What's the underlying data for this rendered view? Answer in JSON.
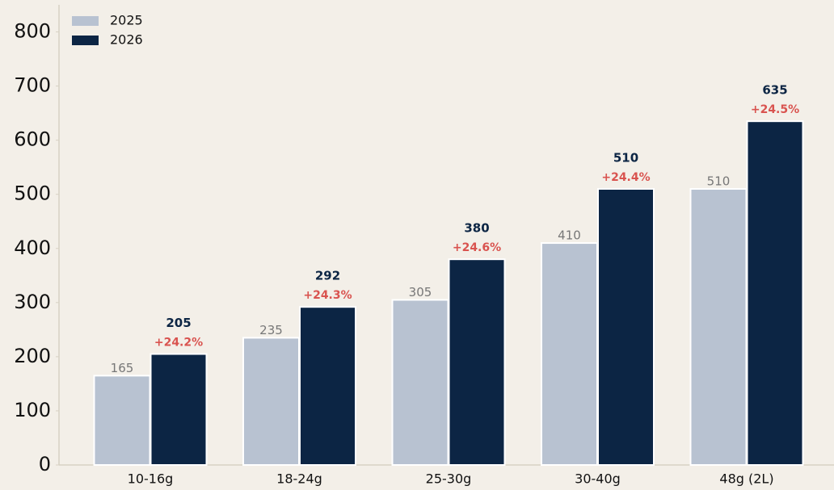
{
  "chart_data": {
    "type": "bar",
    "categories": [
      "10-16g",
      "18-24g",
      "25-30g",
      "30-40g",
      "48g (2L)"
    ],
    "series": [
      {
        "name": "2025",
        "color": "#b8c2d1",
        "values": [
          165,
          235,
          305,
          410,
          510
        ]
      },
      {
        "name": "2026",
        "color": "#0c2544",
        "values": [
          205,
          292,
          380,
          510,
          635
        ],
        "change_labels": [
          "+24.2%",
          "+24.3%",
          "+24.6%",
          "+24.4%",
          "+24.5%"
        ],
        "change_color": "#d9534f"
      }
    ],
    "ylim": [
      0,
      850
    ],
    "yticks": [
      0,
      100,
      200,
      300,
      400,
      500,
      600,
      700,
      800
    ],
    "grid": false,
    "legend": "upper left"
  }
}
